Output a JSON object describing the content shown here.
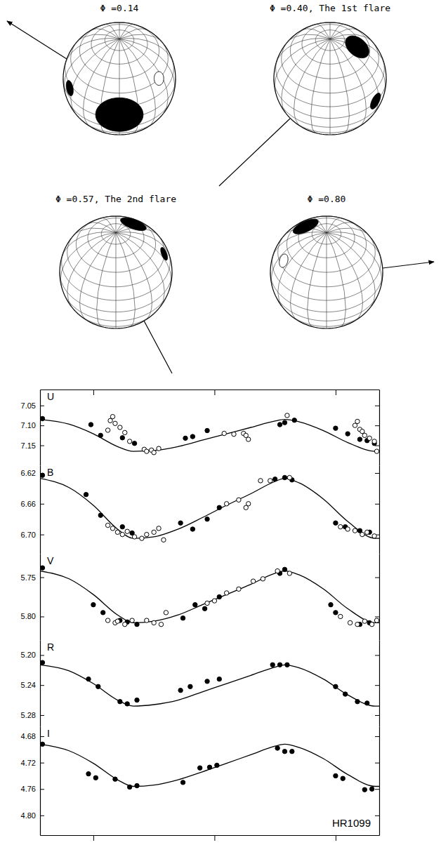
{
  "diagram": {
    "globes": [
      {
        "label": "Φ =0.14"
      },
      {
        "label": "Φ =0.40, The 1st flare"
      },
      {
        "label": "Φ =0.57, The 2nd flare"
      },
      {
        "label": "Φ =0.80"
      }
    ]
  },
  "chart_data": {
    "type": "line",
    "annotation": "HR1099",
    "xlim": [
      -0.22,
      1.18
    ],
    "xticks": [
      0,
      0.5,
      1
    ],
    "tick_labels": "y",
    "panels": [
      {
        "title": "U",
        "ylim": [
          7.01,
          7.2
        ],
        "yticks": [
          7.05,
          {
            "value": 7.1,
            "label": "7.10"
          },
          7.15
        ],
        "series": [
          {
            "type": "line",
            "color": "#000000",
            "x": [
              -0.22,
              -0.1,
              0,
              0.1,
              0.165,
              0.25,
              0.35,
              0.45,
              0.55,
              0.65,
              0.75,
              0.79,
              0.85,
              0.95,
              1.05,
              1.165,
              1.18
            ],
            "values": [
              7.085,
              7.097,
              7.121,
              7.153,
              7.165,
              7.163,
              7.153,
              7.137,
              7.121,
              7.105,
              7.089,
              7.085,
              7.091,
              7.113,
              7.143,
              7.165,
              7.165
            ]
          },
          {
            "type": "scatter",
            "marker": "filled",
            "color": "#000000",
            "x": [
              -0.21,
              -0.01,
              0.03,
              0.12,
              0.17,
              0.38,
              0.41,
              0.47,
              0.77,
              0.79,
              0.83,
              1.0,
              1.05,
              1.1,
              1.13,
              1.16
            ],
            "values": [
              7.083,
              7.098,
              7.125,
              7.131,
              7.145,
              7.132,
              7.128,
              7.113,
              7.098,
              7.093,
              7.087,
              7.107,
              7.121,
              7.135,
              7.138,
              7.145
            ]
          },
          {
            "type": "scatter",
            "marker": "open",
            "color": "#000000",
            "x": [
              0.06,
              0.07,
              0.08,
              0.09,
              0.11,
              0.13,
              0.15,
              0.21,
              0.22,
              0.24,
              0.25,
              0.27,
              0.54,
              0.58,
              0.62,
              0.63,
              0.64,
              0.8,
              1.08,
              1.09,
              1.1,
              1.11,
              1.12,
              1.14,
              1.16,
              1.17
            ],
            "values": [
              7.112,
              7.088,
              7.078,
              7.095,
              7.105,
              7.118,
              7.14,
              7.16,
              7.165,
              7.162,
              7.168,
              7.158,
              7.12,
              7.122,
              7.12,
              7.125,
              7.135,
              7.075,
              7.1,
              7.09,
              7.11,
              7.115,
              7.125,
              7.132,
              7.14,
              7.165
            ]
          }
        ]
      },
      {
        "title": "B",
        "ylim": [
          6.61,
          6.725
        ],
        "yticks": [
          6.62,
          6.66,
          {
            "value": 6.7,
            "label": "6.70"
          }
        ],
        "series": [
          {
            "type": "line",
            "color": "#000000",
            "x": [
              -0.22,
              -0.1,
              0,
              0.1,
              0.165,
              0.25,
              0.35,
              0.45,
              0.55,
              0.65,
              0.75,
              0.79,
              0.85,
              0.95,
              1.05,
              1.165,
              1.18
            ],
            "values": [
              6.627,
              6.639,
              6.662,
              6.693,
              6.705,
              6.703,
              6.693,
              6.678,
              6.662,
              6.647,
              6.631,
              6.627,
              6.633,
              6.654,
              6.683,
              6.705,
              6.705
            ]
          },
          {
            "type": "scatter",
            "marker": "filled",
            "color": "#000000",
            "x": [
              -0.21,
              -0.03,
              0.03,
              0.12,
              0.16,
              0.36,
              0.41,
              0.47,
              0.52,
              0.75,
              0.79,
              0.82,
              1.0,
              1.04,
              1.1,
              1.14
            ],
            "values": [
              6.623,
              6.648,
              6.675,
              6.69,
              6.698,
              6.685,
              6.693,
              6.68,
              6.665,
              6.628,
              6.626,
              6.629,
              6.685,
              6.69,
              6.695,
              6.697
            ]
          },
          {
            "type": "scatter",
            "marker": "open",
            "color": "#000000",
            "x": [
              0.06,
              0.08,
              0.1,
              0.12,
              0.14,
              0.17,
              0.2,
              0.22,
              0.25,
              0.27,
              0.29,
              0.55,
              0.6,
              0.63,
              0.64,
              0.69,
              0.73,
              0.81,
              1.02,
              1.05,
              1.08,
              1.11,
              1.13,
              1.16
            ],
            "values": [
              6.688,
              6.692,
              6.697,
              6.7,
              6.696,
              6.703,
              6.705,
              6.7,
              6.697,
              6.692,
              6.707,
              6.66,
              6.655,
              6.665,
              6.66,
              6.63,
              6.63,
              6.626,
              6.69,
              6.693,
              6.695,
              6.7,
              6.697,
              6.702
            ]
          }
        ]
      },
      {
        "title": "V",
        "ylim": [
          5.72,
          5.83
        ],
        "yticks": [
          5.75,
          {
            "value": 5.8,
            "label": "5.80"
          }
        ],
        "series": [
          {
            "type": "line",
            "color": "#000000",
            "x": [
              -0.22,
              -0.1,
              0,
              0.1,
              0.165,
              0.25,
              0.35,
              0.45,
              0.55,
              0.65,
              0.75,
              0.79,
              0.85,
              0.95,
              1.05,
              1.165,
              1.18
            ],
            "values": [
              5.742,
              5.752,
              5.772,
              5.798,
              5.808,
              5.806,
              5.798,
              5.785,
              5.772,
              5.759,
              5.745,
              5.742,
              5.747,
              5.765,
              5.79,
              5.808,
              5.808
            ]
          },
          {
            "type": "scatter",
            "marker": "filled",
            "color": "#000000",
            "x": [
              -0.21,
              0,
              0.04,
              0.11,
              0.14,
              0.18,
              0.37,
              0.42,
              0.46,
              0.52,
              0.77,
              0.79,
              0.98,
              1.0,
              1.1,
              1.14
            ],
            "values": [
              5.738,
              5.785,
              5.795,
              5.805,
              5.807,
              5.81,
              5.802,
              5.785,
              5.79,
              5.775,
              5.745,
              5.74,
              5.785,
              5.795,
              5.81,
              5.808
            ]
          },
          {
            "type": "scatter",
            "marker": "open",
            "color": "#000000",
            "x": [
              0.06,
              0.09,
              0.1,
              0.13,
              0.16,
              0.22,
              0.25,
              0.28,
              0.3,
              0.47,
              0.5,
              0.55,
              0.6,
              0.66,
              0.7,
              0.76,
              0.81,
              1.02,
              1.06,
              1.09,
              1.12,
              1.15,
              1.17
            ],
            "values": [
              5.805,
              5.808,
              5.806,
              5.81,
              5.805,
              5.805,
              5.808,
              5.81,
              5.795,
              5.783,
              5.78,
              5.77,
              5.765,
              5.755,
              5.752,
              5.742,
              5.745,
              5.8,
              5.808,
              5.81,
              5.806,
              5.81,
              5.805
            ]
          }
        ]
      },
      {
        "title": "R",
        "ylim": [
          5.18,
          5.295
        ],
        "yticks": [
          {
            "value": 5.2,
            "label": "5.20"
          },
          5.24,
          5.28
        ],
        "series": [
          {
            "type": "line",
            "color": "#000000",
            "x": [
              -0.22,
              -0.1,
              0,
              0.1,
              0.165,
              0.25,
              0.35,
              0.45,
              0.55,
              0.65,
              0.75,
              0.79,
              0.85,
              0.95,
              1.05,
              1.165,
              1.18
            ],
            "values": [
              5.213,
              5.221,
              5.238,
              5.26,
              5.268,
              5.266,
              5.26,
              5.249,
              5.238,
              5.227,
              5.216,
              5.213,
              5.217,
              5.232,
              5.253,
              5.268,
              5.268
            ]
          },
          {
            "type": "scatter",
            "marker": "filled",
            "color": "#000000",
            "x": [
              -0.21,
              -0.02,
              0.02,
              0.11,
              0.14,
              0.18,
              0.36,
              0.4,
              0.47,
              0.52,
              0.74,
              0.77,
              0.8,
              1.0,
              1.04,
              1.09,
              1.13
            ],
            "values": [
              5.21,
              5.232,
              5.242,
              5.262,
              5.265,
              5.26,
              5.247,
              5.242,
              5.235,
              5.232,
              5.213,
              5.213,
              5.213,
              5.242,
              5.252,
              5.262,
              5.264
            ]
          }
        ]
      },
      {
        "title": "I",
        "ylim": [
          4.665,
          4.83
        ],
        "yticks": [
          4.68,
          4.72,
          4.76,
          {
            "value": 4.8,
            "label": "4.80"
          }
        ],
        "series": [
          {
            "type": "line",
            "color": "#000000",
            "x": [
              -0.22,
              -0.1,
              0,
              0.1,
              0.165,
              0.25,
              0.35,
              0.45,
              0.55,
              0.65,
              0.75,
              0.79,
              0.85,
              0.95,
              1.05,
              1.165,
              1.18
            ],
            "values": [
              4.692,
              4.702,
              4.721,
              4.746,
              4.756,
              4.754,
              4.746,
              4.734,
              4.721,
              4.708,
              4.695,
              4.692,
              4.697,
              4.714,
              4.738,
              4.756,
              4.756
            ]
          },
          {
            "type": "scatter",
            "marker": "filled",
            "color": "#000000",
            "x": [
              -0.21,
              -0.02,
              0.01,
              0.09,
              0.15,
              0.18,
              0.37,
              0.44,
              0.48,
              0.51,
              0.76,
              0.79,
              0.82,
              1.0,
              1.03,
              1.12,
              1.15
            ],
            "values": [
              4.692,
              4.737,
              4.743,
              4.745,
              4.757,
              4.755,
              4.75,
              4.728,
              4.727,
              4.724,
              4.698,
              4.703,
              4.703,
              4.74,
              4.744,
              4.761,
              4.76
            ]
          }
        ]
      }
    ]
  }
}
